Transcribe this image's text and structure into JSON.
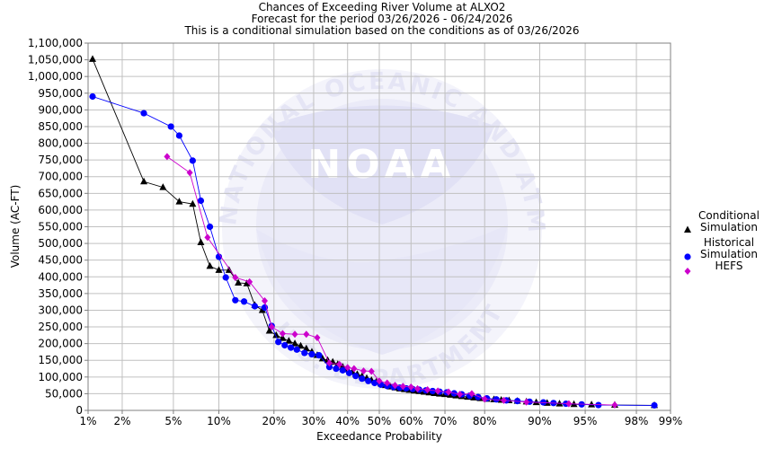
{
  "chart_data": {
    "type": "scatter",
    "title_lines": [
      "Chances of Exceeding River Volume at ALXO2",
      "Forecast for the period 03/26/2026 - 06/24/2026",
      "This is a conditional simulation based on the conditions as of 03/26/2026"
    ],
    "xlabel": "Exceedance Probability",
    "ylabel": "Volume (AC-FT)",
    "ylim": [
      0,
      1100000
    ],
    "x_scale": "normal-probability",
    "x_ticks": [
      {
        "p": 0.99,
        "label": "99%"
      },
      {
        "p": 0.98,
        "label": "98%"
      },
      {
        "p": 0.95,
        "label": "95%"
      },
      {
        "p": 0.9,
        "label": "90%"
      },
      {
        "p": 0.8,
        "label": "80%"
      },
      {
        "p": 0.7,
        "label": "70%"
      },
      {
        "p": 0.6,
        "label": "60%"
      },
      {
        "p": 0.5,
        "label": "50%"
      },
      {
        "p": 0.4,
        "label": "40%"
      },
      {
        "p": 0.3,
        "label": "30%"
      },
      {
        "p": 0.2,
        "label": "20%"
      },
      {
        "p": 0.1,
        "label": "10%"
      },
      {
        "p": 0.05,
        "label": "5%"
      },
      {
        "p": 0.02,
        "label": "2%"
      },
      {
        "p": 0.01,
        "label": "1%"
      }
    ],
    "y_ticks": [
      {
        "v": 0,
        "label": "0"
      },
      {
        "v": 50000,
        "label": "50,000"
      },
      {
        "v": 100000,
        "label": "100,000"
      },
      {
        "v": 150000,
        "label": "150,000"
      },
      {
        "v": 200000,
        "label": "200,000"
      },
      {
        "v": 250000,
        "label": "250,000"
      },
      {
        "v": 300000,
        "label": "300,000"
      },
      {
        "v": 350000,
        "label": "350,000"
      },
      {
        "v": 400000,
        "label": "400,000"
      },
      {
        "v": 450000,
        "label": "450,000"
      },
      {
        "v": 500000,
        "label": "500,000"
      },
      {
        "v": 550000,
        "label": "550,000"
      },
      {
        "v": 600000,
        "label": "600,000"
      },
      {
        "v": 650000,
        "label": "650,000"
      },
      {
        "v": 700000,
        "label": "700,000"
      },
      {
        "v": 750000,
        "label": "750,000"
      },
      {
        "v": 800000,
        "label": "800,000"
      },
      {
        "v": 850000,
        "label": "850,000"
      },
      {
        "v": 900000,
        "label": "900,000"
      },
      {
        "v": 950000,
        "label": "950,000"
      },
      {
        "v": 1000000,
        "label": "1,000,000"
      },
      {
        "v": 1050000,
        "label": "1,050,000"
      },
      {
        "v": 1100000,
        "label": "1,100,000"
      }
    ],
    "grid": true,
    "legend_position": "right",
    "watermark": "NATIONAL OCEANIC AND ATMOSPHERIC ADMINISTRATION · U.S. DEPARTMENT OF COMMERCE · NOAA",
    "series": [
      {
        "name": "Conditional Simulation",
        "legend_lines": [
          "Conditional",
          "Simulation"
        ],
        "marker": "triangle",
        "color": "#000000",
        "points": [
          [
            0.986,
            15000
          ],
          [
            0.97,
            16000
          ],
          [
            0.955,
            17000
          ],
          [
            0.94,
            18000
          ],
          [
            0.925,
            20000
          ],
          [
            0.91,
            22000
          ],
          [
            0.895,
            24000
          ],
          [
            0.88,
            26000
          ],
          [
            0.865,
            28000
          ],
          [
            0.85,
            29500
          ],
          [
            0.835,
            31000
          ],
          [
            0.82,
            32500
          ],
          [
            0.805,
            34000
          ],
          [
            0.79,
            36000
          ],
          [
            0.775,
            38000
          ],
          [
            0.76,
            40000
          ],
          [
            0.745,
            42000
          ],
          [
            0.73,
            44000
          ],
          [
            0.715,
            46000
          ],
          [
            0.7,
            48000
          ],
          [
            0.685,
            49500
          ],
          [
            0.67,
            51000
          ],
          [
            0.655,
            53000
          ],
          [
            0.64,
            55000
          ],
          [
            0.625,
            57000
          ],
          [
            0.61,
            59000
          ],
          [
            0.595,
            61000
          ],
          [
            0.58,
            63000
          ],
          [
            0.565,
            65000
          ],
          [
            0.55,
            68000
          ],
          [
            0.535,
            71000
          ],
          [
            0.52,
            75000
          ],
          [
            0.505,
            80000
          ],
          [
            0.49,
            85000
          ],
          [
            0.475,
            90000
          ],
          [
            0.46,
            96000
          ],
          [
            0.445,
            102000
          ],
          [
            0.43,
            108000
          ],
          [
            0.415,
            115000
          ],
          [
            0.4,
            122000
          ],
          [
            0.385,
            130000
          ],
          [
            0.37,
            138000
          ],
          [
            0.355,
            145000
          ],
          [
            0.34,
            150000
          ],
          [
            0.325,
            155000
          ],
          [
            0.31,
            165000
          ],
          [
            0.295,
            175000
          ],
          [
            0.28,
            185000
          ],
          [
            0.265,
            193000
          ],
          [
            0.25,
            200000
          ],
          [
            0.235,
            208000
          ],
          [
            0.22,
            216000
          ],
          [
            0.205,
            225000
          ],
          [
            0.19,
            238000
          ],
          [
            0.175,
            300000
          ],
          [
            0.16,
            315000
          ],
          [
            0.145,
            380000
          ],
          [
            0.13,
            382000
          ],
          [
            0.115,
            420000
          ],
          [
            0.1,
            420000
          ],
          [
            0.088,
            432000
          ],
          [
            0.077,
            503000
          ],
          [
            0.068,
            618000
          ],
          [
            0.055,
            625000
          ],
          [
            0.042,
            668000
          ],
          [
            0.03,
            685000
          ],
          [
            0.011,
            1052000
          ]
        ]
      },
      {
        "name": "Historical Simulation",
        "legend_lines": [
          "Historical",
          "Simulation"
        ],
        "marker": "circle",
        "color": "#0000ff",
        "points": [
          [
            0.986,
            15000
          ],
          [
            0.96,
            16000
          ],
          [
            0.947,
            18000
          ],
          [
            0.932,
            20000
          ],
          [
            0.918,
            22000
          ],
          [
            0.905,
            24000
          ],
          [
            0.885,
            26000
          ],
          [
            0.865,
            28000
          ],
          [
            0.845,
            30000
          ],
          [
            0.825,
            33000
          ],
          [
            0.805,
            36000
          ],
          [
            0.785,
            40000
          ],
          [
            0.765,
            44000
          ],
          [
            0.745,
            48000
          ],
          [
            0.725,
            51000
          ],
          [
            0.705,
            54000
          ],
          [
            0.685,
            56000
          ],
          [
            0.665,
            58000
          ],
          [
            0.645,
            60000
          ],
          [
            0.625,
            62000
          ],
          [
            0.605,
            64000
          ],
          [
            0.585,
            66000
          ],
          [
            0.565,
            68000
          ],
          [
            0.545,
            70000
          ],
          [
            0.525,
            73000
          ],
          [
            0.505,
            77000
          ],
          [
            0.485,
            82000
          ],
          [
            0.465,
            88000
          ],
          [
            0.445,
            95000
          ],
          [
            0.425,
            103000
          ],
          [
            0.405,
            112000
          ],
          [
            0.385,
            120000
          ],
          [
            0.365,
            125000
          ],
          [
            0.345,
            130000
          ],
          [
            0.315,
            165000
          ],
          [
            0.295,
            168000
          ],
          [
            0.275,
            172000
          ],
          [
            0.255,
            182000
          ],
          [
            0.24,
            188000
          ],
          [
            0.225,
            195000
          ],
          [
            0.21,
            205000
          ],
          [
            0.195,
            253000
          ],
          [
            0.18,
            308000
          ],
          [
            0.16,
            312000
          ],
          [
            0.14,
            326000
          ],
          [
            0.125,
            330000
          ],
          [
            0.11,
            398000
          ],
          [
            0.1,
            460000
          ],
          [
            0.088,
            550000
          ],
          [
            0.077,
            628000
          ],
          [
            0.068,
            748000
          ],
          [
            0.055,
            823000
          ],
          [
            0.048,
            850000
          ],
          [
            0.03,
            890000
          ],
          [
            0.011,
            940000
          ]
        ]
      },
      {
        "name": "HEFS",
        "legend_lines": [
          "HEFS"
        ],
        "marker": "diamond",
        "color": "#cc00cc",
        "points": [
          [
            0.97,
            16000
          ],
          [
            0.935,
            20000
          ],
          [
            0.88,
            25000
          ],
          [
            0.84,
            30000
          ],
          [
            0.8,
            34000
          ],
          [
            0.77,
            50000
          ],
          [
            0.74,
            48000
          ],
          [
            0.71,
            55000
          ],
          [
            0.68,
            58000
          ],
          [
            0.65,
            62000
          ],
          [
            0.62,
            65000
          ],
          [
            0.6,
            70000
          ],
          [
            0.575,
            72000
          ],
          [
            0.55,
            75000
          ],
          [
            0.525,
            82000
          ],
          [
            0.5,
            88000
          ],
          [
            0.475,
            117000
          ],
          [
            0.45,
            118000
          ],
          [
            0.42,
            125000
          ],
          [
            0.4,
            128000
          ],
          [
            0.375,
            138000
          ],
          [
            0.345,
            142000
          ],
          [
            0.31,
            218000
          ],
          [
            0.28,
            228000
          ],
          [
            0.25,
            228000
          ],
          [
            0.22,
            230000
          ],
          [
            0.195,
            250000
          ],
          [
            0.18,
            328000
          ],
          [
            0.15,
            385000
          ],
          [
            0.125,
            398000
          ],
          [
            0.085,
            518000
          ],
          [
            0.065,
            712000
          ],
          [
            0.045,
            760000
          ]
        ]
      }
    ]
  }
}
